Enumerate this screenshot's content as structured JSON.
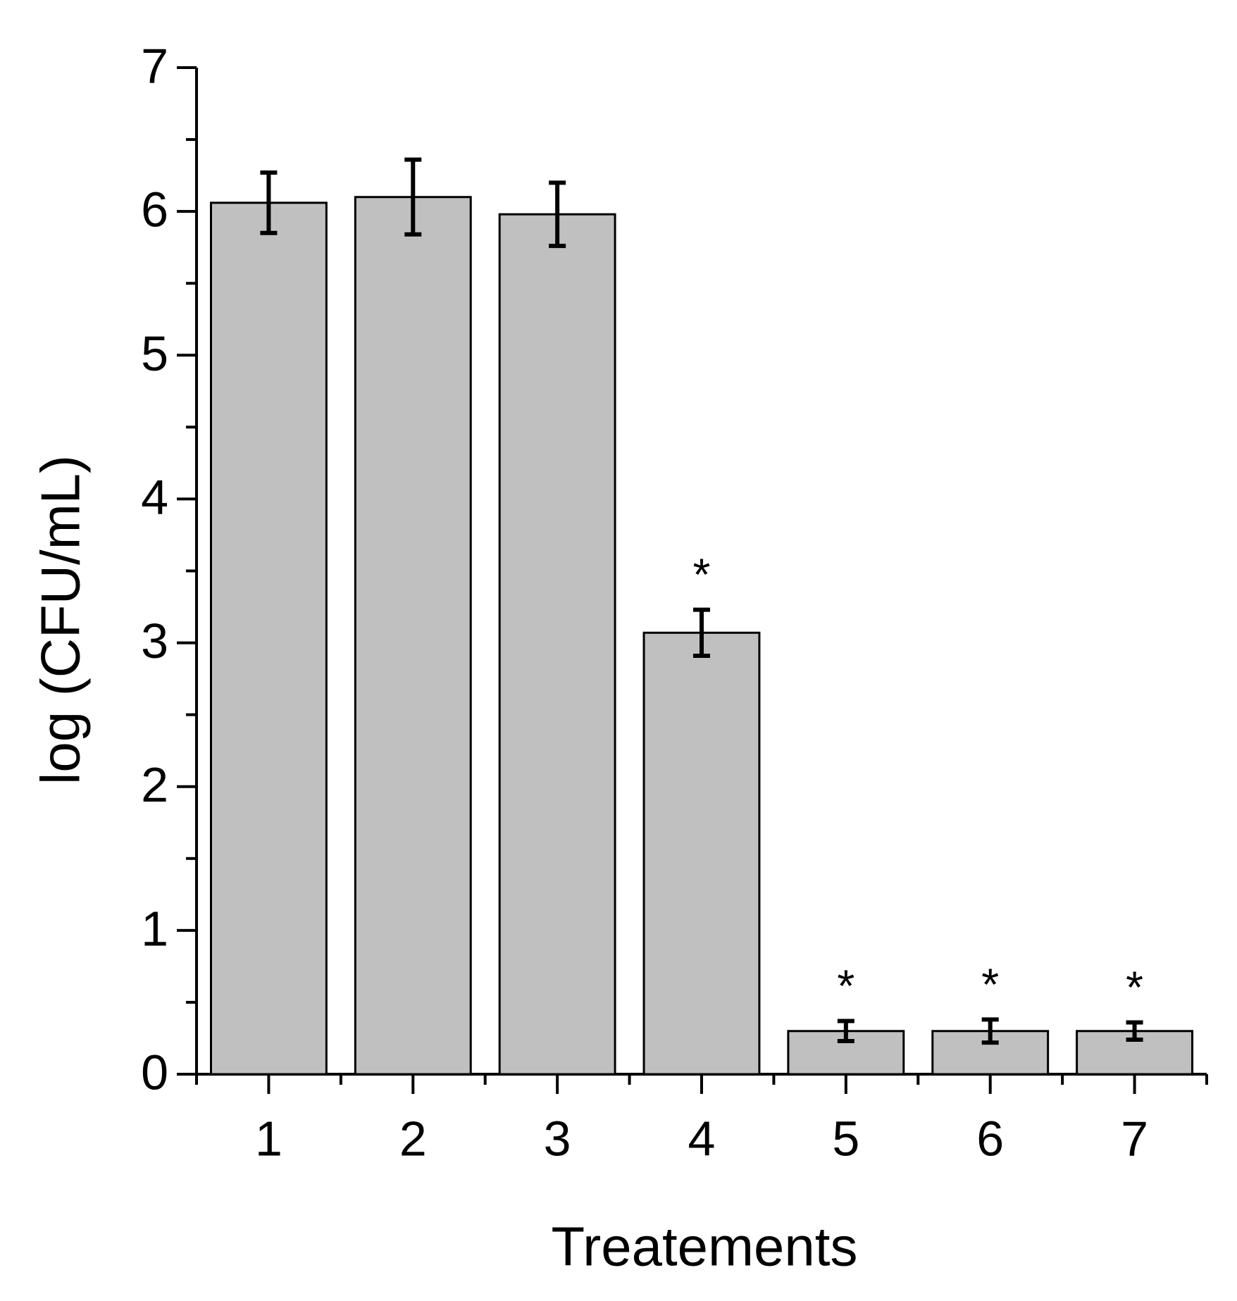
{
  "chart_data": {
    "type": "bar",
    "x_label": "Treatements",
    "y_label": "log (CFU/mL)",
    "categories": [
      "1",
      "2",
      "3",
      "4",
      "5",
      "6",
      "7"
    ],
    "values": [
      6.06,
      6.1,
      5.98,
      3.07,
      0.3,
      0.3,
      0.3
    ],
    "errors": [
      0.21,
      0.26,
      0.22,
      0.16,
      0.07,
      0.08,
      0.06
    ],
    "significance": [
      null,
      null,
      null,
      "*",
      "*",
      "*",
      "*"
    ],
    "color": "#c0c0c0",
    "ylim": [
      0,
      7
    ],
    "yticks": [
      0,
      1,
      2,
      3,
      4,
      5,
      6,
      7
    ],
    "minor_yticks": [
      0.5,
      1.5,
      2.5,
      3.5,
      4.5,
      5.5,
      6.5
    ],
    "grid": false
  }
}
